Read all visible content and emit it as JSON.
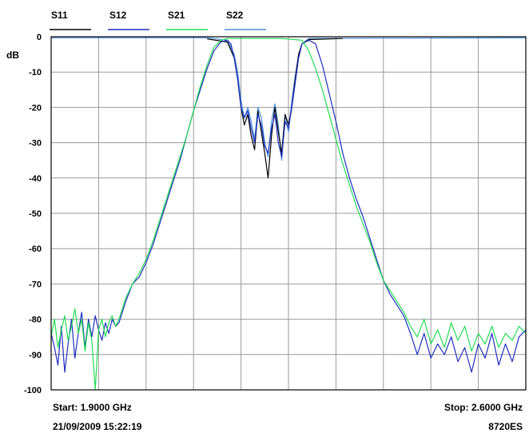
{
  "chart_data": {
    "type": "line",
    "ylabel": "dB",
    "ylim": [
      -100,
      0
    ],
    "yticks": [
      0,
      -10,
      -20,
      -30,
      -40,
      -50,
      -60,
      -70,
      -80,
      -90,
      -100
    ],
    "xlim": [
      1.9,
      2.6
    ],
    "x_unit": "GHz",
    "x_divisions": 10,
    "grid": true,
    "legend_position": "top",
    "series": [
      {
        "name": "S11",
        "color": "#000000",
        "points": [
          [
            2.13,
            -0.6
          ],
          [
            2.16,
            -1.5
          ],
          [
            2.17,
            -6
          ],
          [
            2.175,
            -12
          ],
          [
            2.18,
            -20
          ],
          [
            2.185,
            -25
          ],
          [
            2.19,
            -22
          ],
          [
            2.195,
            -28
          ],
          [
            2.2,
            -32
          ],
          [
            2.205,
            -21
          ],
          [
            2.21,
            -27
          ],
          [
            2.215,
            -33
          ],
          [
            2.22,
            -40
          ],
          [
            2.225,
            -28
          ],
          [
            2.23,
            -20
          ],
          [
            2.235,
            -27
          ],
          [
            2.24,
            -33
          ],
          [
            2.245,
            -22
          ],
          [
            2.25,
            -25
          ],
          [
            2.255,
            -20
          ],
          [
            2.26,
            -12
          ],
          [
            2.265,
            -5
          ],
          [
            2.27,
            -2
          ],
          [
            2.28,
            -0.8
          ],
          [
            2.33,
            -0.5
          ]
        ]
      },
      {
        "name": "S12",
        "color": "#1f2fbf",
        "points": [
          [
            1.9,
            -84
          ],
          [
            1.905,
            -88
          ],
          [
            1.91,
            -93
          ],
          [
            1.915,
            -82
          ],
          [
            1.92,
            -95
          ],
          [
            1.925,
            -87
          ],
          [
            1.93,
            -80
          ],
          [
            1.935,
            -91
          ],
          [
            1.94,
            -84
          ],
          [
            1.945,
            -78
          ],
          [
            1.95,
            -88
          ],
          [
            1.955,
            -80
          ],
          [
            1.96,
            -85
          ],
          [
            1.965,
            -79
          ],
          [
            1.97,
            -83
          ],
          [
            1.975,
            -86
          ],
          [
            1.98,
            -81
          ],
          [
            1.985,
            -84
          ],
          [
            1.99,
            -80
          ],
          [
            1.995,
            -82
          ],
          [
            2.0,
            -81
          ],
          [
            2.01,
            -75
          ],
          [
            2.02,
            -70
          ],
          [
            2.03,
            -68
          ],
          [
            2.04,
            -64
          ],
          [
            2.05,
            -59
          ],
          [
            2.06,
            -53
          ],
          [
            2.07,
            -47
          ],
          [
            2.08,
            -41
          ],
          [
            2.09,
            -35
          ],
          [
            2.1,
            -28
          ],
          [
            2.11,
            -21
          ],
          [
            2.12,
            -15
          ],
          [
            2.13,
            -9
          ],
          [
            2.14,
            -4
          ],
          [
            2.15,
            -1.5
          ],
          [
            2.16,
            -1
          ],
          [
            2.165,
            -2
          ],
          [
            2.17,
            -6
          ],
          [
            2.175,
            -12
          ],
          [
            2.18,
            -20
          ],
          [
            2.185,
            -23
          ],
          [
            2.19,
            -21
          ],
          [
            2.195,
            -26
          ],
          [
            2.2,
            -30
          ],
          [
            2.205,
            -22
          ],
          [
            2.21,
            -25
          ],
          [
            2.215,
            -31
          ],
          [
            2.22,
            -33
          ],
          [
            2.225,
            -26
          ],
          [
            2.23,
            -22
          ],
          [
            2.235,
            -30
          ],
          [
            2.24,
            -34
          ],
          [
            2.245,
            -24
          ],
          [
            2.25,
            -26
          ],
          [
            2.255,
            -20
          ],
          [
            2.26,
            -13
          ],
          [
            2.265,
            -6
          ],
          [
            2.27,
            -2
          ],
          [
            2.28,
            -1
          ],
          [
            2.29,
            -2
          ],
          [
            2.3,
            -8
          ],
          [
            2.31,
            -16
          ],
          [
            2.32,
            -24
          ],
          [
            2.33,
            -33
          ],
          [
            2.34,
            -40
          ],
          [
            2.35,
            -46
          ],
          [
            2.36,
            -51
          ],
          [
            2.37,
            -57
          ],
          [
            2.38,
            -63
          ],
          [
            2.39,
            -69
          ],
          [
            2.4,
            -73
          ],
          [
            2.41,
            -76
          ],
          [
            2.42,
            -79
          ],
          [
            2.43,
            -84
          ],
          [
            2.44,
            -90
          ],
          [
            2.45,
            -84
          ],
          [
            2.46,
            -91
          ],
          [
            2.47,
            -87
          ],
          [
            2.48,
            -90
          ],
          [
            2.49,
            -85
          ],
          [
            2.5,
            -92
          ],
          [
            2.51,
            -88
          ],
          [
            2.52,
            -95
          ],
          [
            2.53,
            -87
          ],
          [
            2.54,
            -91
          ],
          [
            2.55,
            -84
          ],
          [
            2.56,
            -93
          ],
          [
            2.57,
            -87
          ],
          [
            2.58,
            -92
          ],
          [
            2.59,
            -85
          ],
          [
            2.6,
            -83
          ]
        ]
      },
      {
        "name": "S21",
        "color": "#22dd55",
        "points": [
          [
            1.9,
            -85
          ],
          [
            1.905,
            -80
          ],
          [
            1.91,
            -88
          ],
          [
            1.915,
            -83
          ],
          [
            1.92,
            -79
          ],
          [
            1.925,
            -86
          ],
          [
            1.93,
            -82
          ],
          [
            1.935,
            -77
          ],
          [
            1.94,
            -84
          ],
          [
            1.945,
            -80
          ],
          [
            1.95,
            -89
          ],
          [
            1.955,
            -81
          ],
          [
            1.96,
            -86
          ],
          [
            1.965,
            -100
          ],
          [
            1.97,
            -83
          ],
          [
            1.975,
            -80
          ],
          [
            1.98,
            -85
          ],
          [
            1.985,
            -81
          ],
          [
            1.99,
            -79
          ],
          [
            1.995,
            -82
          ],
          [
            2.0,
            -80
          ],
          [
            2.01,
            -74
          ],
          [
            2.02,
            -70
          ],
          [
            2.03,
            -67
          ],
          [
            2.04,
            -63
          ],
          [
            2.05,
            -58
          ],
          [
            2.06,
            -52
          ],
          [
            2.07,
            -46
          ],
          [
            2.08,
            -40
          ],
          [
            2.09,
            -34
          ],
          [
            2.1,
            -28
          ],
          [
            2.11,
            -21
          ],
          [
            2.12,
            -14
          ],
          [
            2.13,
            -8
          ],
          [
            2.14,
            -3
          ],
          [
            2.15,
            -1
          ],
          [
            2.16,
            -0.5
          ],
          [
            2.2,
            -0.5
          ],
          [
            2.24,
            -0.5
          ],
          [
            2.27,
            -1
          ],
          [
            2.28,
            -4
          ],
          [
            2.29,
            -9
          ],
          [
            2.3,
            -15
          ],
          [
            2.31,
            -22
          ],
          [
            2.32,
            -29
          ],
          [
            2.33,
            -36
          ],
          [
            2.34,
            -42
          ],
          [
            2.35,
            -48
          ],
          [
            2.36,
            -53
          ],
          [
            2.37,
            -58
          ],
          [
            2.38,
            -64
          ],
          [
            2.39,
            -69
          ],
          [
            2.4,
            -72
          ],
          [
            2.41,
            -75
          ],
          [
            2.42,
            -78
          ],
          [
            2.43,
            -82
          ],
          [
            2.44,
            -85
          ],
          [
            2.45,
            -80
          ],
          [
            2.46,
            -87
          ],
          [
            2.47,
            -83
          ],
          [
            2.48,
            -88
          ],
          [
            2.49,
            -81
          ],
          [
            2.5,
            -86
          ],
          [
            2.51,
            -82
          ],
          [
            2.52,
            -89
          ],
          [
            2.53,
            -84
          ],
          [
            2.54,
            -87
          ],
          [
            2.55,
            -82
          ],
          [
            2.56,
            -88
          ],
          [
            2.57,
            -84
          ],
          [
            2.58,
            -86
          ],
          [
            2.59,
            -82
          ],
          [
            2.6,
            -84
          ]
        ]
      },
      {
        "name": "S22",
        "color": "#4a90d9",
        "points": [
          [
            1.9,
            -0.3
          ],
          [
            2.13,
            -0.3
          ],
          [
            2.16,
            -1
          ],
          [
            2.17,
            -5
          ],
          [
            2.175,
            -10
          ],
          [
            2.18,
            -18
          ],
          [
            2.185,
            -23
          ],
          [
            2.19,
            -20
          ],
          [
            2.195,
            -24
          ],
          [
            2.2,
            -29
          ],
          [
            2.205,
            -20
          ],
          [
            2.21,
            -23
          ],
          [
            2.215,
            -30
          ],
          [
            2.22,
            -34
          ],
          [
            2.225,
            -24
          ],
          [
            2.23,
            -19
          ],
          [
            2.235,
            -25
          ],
          [
            2.24,
            -35
          ],
          [
            2.245,
            -22
          ],
          [
            2.25,
            -27
          ],
          [
            2.255,
            -18
          ],
          [
            2.26,
            -11
          ],
          [
            2.265,
            -5
          ],
          [
            2.27,
            -2
          ],
          [
            2.28,
            -0.5
          ],
          [
            2.6,
            -0.3
          ]
        ]
      }
    ],
    "start_label": "Start: 1.9000 GHz",
    "stop_label": "Stop: 2.6000 GHz",
    "timestamp": "21/09/2009 15:22:19",
    "instrument_id": "8720ES"
  }
}
